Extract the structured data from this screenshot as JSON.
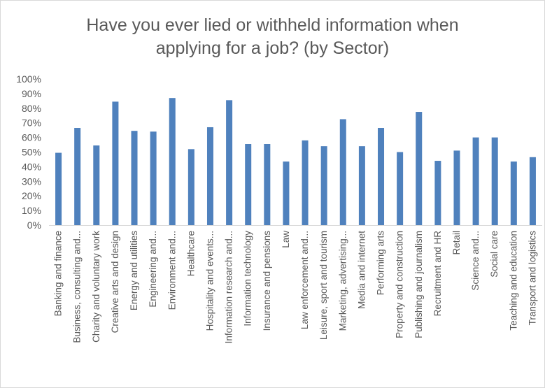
{
  "chart_data": {
    "type": "bar",
    "title": "Have you ever lied or withheld information when applying for a job? (by Sector)",
    "title_lines": [
      "Have you ever lied or withheld information when",
      "applying for a job? (by Sector)"
    ],
    "xlabel": "",
    "ylabel": "",
    "ylim": [
      0,
      100
    ],
    "yticks": [
      "0%",
      "10%",
      "20%",
      "30%",
      "40%",
      "50%",
      "60%",
      "70%",
      "80%",
      "90%",
      "100%"
    ],
    "grid": false,
    "legend": "none",
    "bar_color": "#4f81bd",
    "categories": [
      "Banking and finance",
      "Business, consulting and...",
      "Charity and voluntary work",
      "Creative arts and design",
      "Energy and utilities",
      "Engineering and...",
      "Environment and...",
      "Healthcare",
      "Hospitality and events...",
      "Information research and...",
      "Information technology",
      "Insurance and pensions",
      "Law",
      "Law enforcement and...",
      "Leisure, sport and tourism",
      "Marketing, advertising...",
      "Media and internet",
      "Performing arts",
      "Property and construction",
      "Publishing and journalism",
      "Recruitment and HR",
      "Retail",
      "Science and...",
      "Social care",
      "Teaching and education",
      "Transport and logistics"
    ],
    "values": [
      49.5,
      66.5,
      54.5,
      84.5,
      64.5,
      64,
      87,
      52,
      67,
      85.5,
      55.5,
      55.5,
      43.5,
      58,
      54,
      72.5,
      54,
      66.5,
      50,
      77.5,
      44,
      51,
      60,
      60,
      43.5,
      46.5
    ]
  }
}
